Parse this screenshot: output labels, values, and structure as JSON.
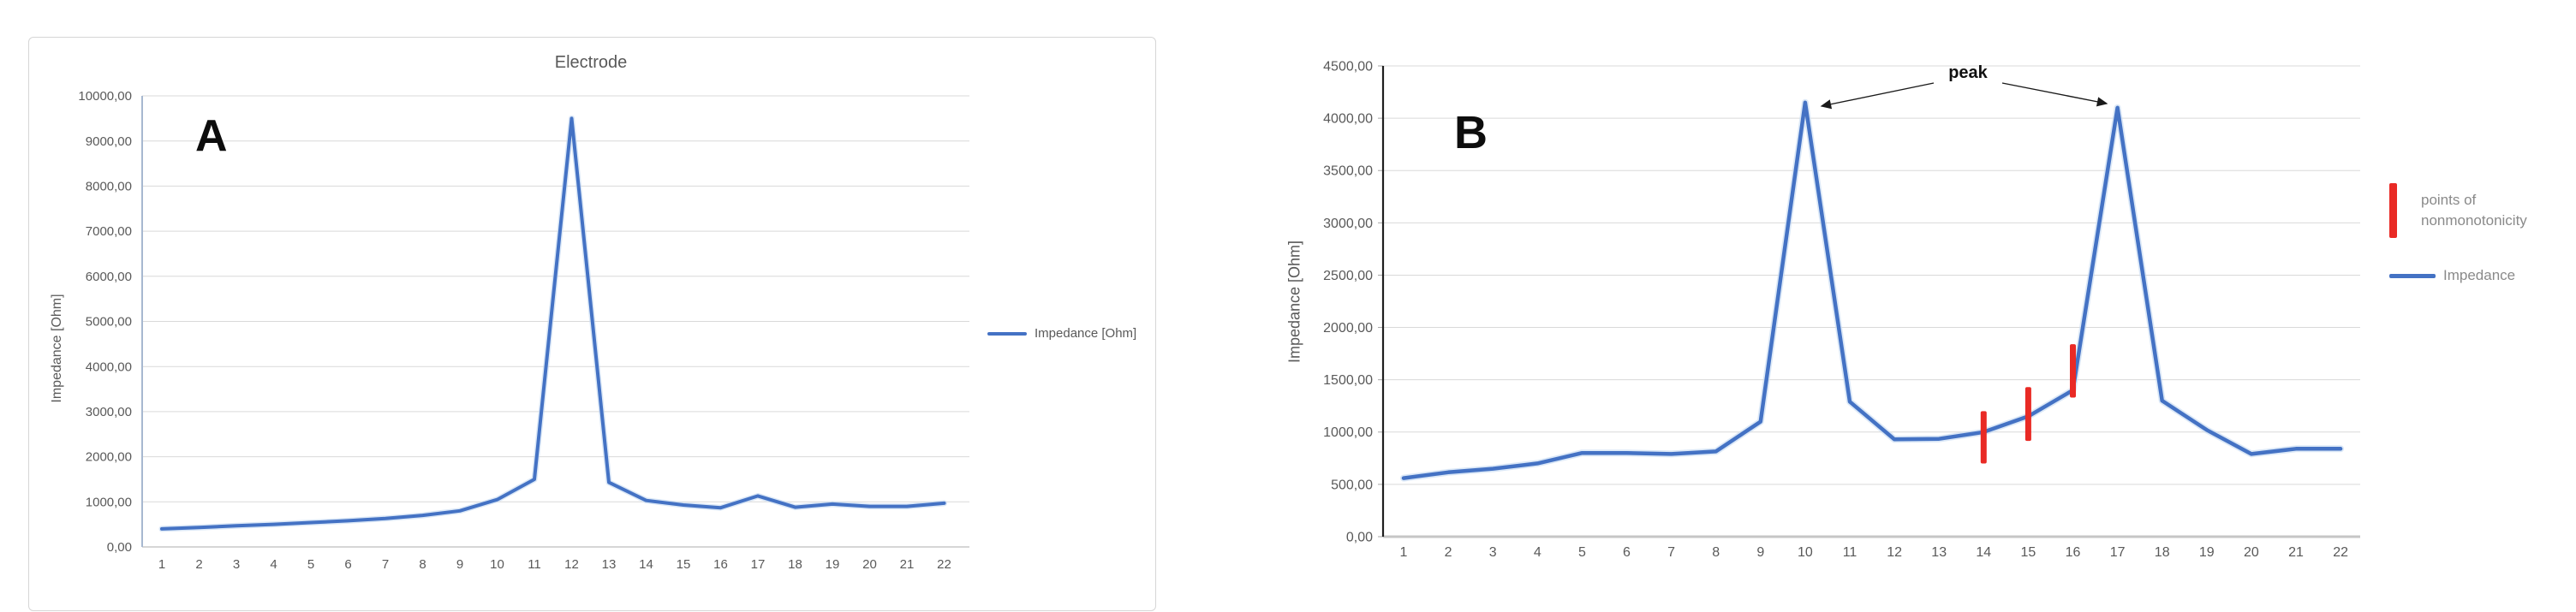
{
  "colors": {
    "line": "#4472C4",
    "line_halo": "#c7dbf2",
    "nonmonotonicity_red": "#E92A25",
    "grid": "#D9D9D9",
    "axis_text": "#595959",
    "legend_text_b": "#8a8a8a",
    "b_y_axis": "#1f1f1f",
    "annotation": "#1a1a1a"
  },
  "chart_data": [
    {
      "id": "A",
      "type": "line",
      "panel_label": "A",
      "title": "Electrode",
      "ylabel": "Impedance [Ohm]",
      "xlabel": "",
      "grid": true,
      "legend_position": "right",
      "categories": [
        1,
        2,
        3,
        4,
        5,
        6,
        7,
        8,
        9,
        10,
        11,
        12,
        13,
        14,
        15,
        16,
        17,
        18,
        19,
        20,
        21,
        22
      ],
      "series": [
        {
          "name": "Impedance [Ohm]",
          "color": "#4472C4",
          "values": [
            400,
            430,
            470,
            500,
            540,
            580,
            630,
            700,
            800,
            1050,
            1500,
            9500,
            1430,
            1030,
            930,
            870,
            1130,
            880,
            950,
            900,
            900,
            970
          ]
        }
      ],
      "ylim": [
        0,
        10000
      ],
      "ytick_step": 1000,
      "ytick_labels": [
        "0,00",
        "1000,00",
        "2000,00",
        "3000,00",
        "4000,00",
        "5000,00",
        "6000,00",
        "7000,00",
        "8000,00",
        "9000,00",
        "10000,00"
      ],
      "legend": [
        {
          "swatch": "line",
          "label": "Impedance [Ohm]"
        }
      ]
    },
    {
      "id": "B",
      "type": "line",
      "panel_label": "B",
      "title": "",
      "ylabel": "Impedance [Ohm]",
      "xlabel": "",
      "grid": true,
      "legend_position": "right",
      "categories": [
        1,
        2,
        3,
        4,
        5,
        6,
        7,
        8,
        9,
        10,
        11,
        12,
        13,
        14,
        15,
        16,
        17,
        18,
        19,
        20,
        21,
        22
      ],
      "series": [
        {
          "name": "Impedance",
          "color": "#4472C4",
          "values": [
            560,
            615,
            650,
            700,
            800,
            800,
            790,
            815,
            1100,
            4150,
            1290,
            930,
            935,
            1000,
            1150,
            1400,
            4100,
            1300,
            1020,
            790,
            840,
            840
          ]
        }
      ],
      "ylim": [
        0,
        4500
      ],
      "ytick_step": 500,
      "ytick_labels": [
        "0,00",
        "500,00",
        "1000,00",
        "1500,00",
        "2000,00",
        "2500,00",
        "3000,00",
        "3500,00",
        "4000,00",
        "4500,00"
      ],
      "annotations": {
        "peak": {
          "label": "peak",
          "targets": [
            10,
            17
          ]
        },
        "nonmonotonicity": {
          "label": "points of nonmonotonicity",
          "color": "#E92A25",
          "bars": [
            {
              "category": 14,
              "from": 700,
              "to": 1200
            },
            {
              "category": 15,
              "from": 915,
              "to": 1430
            },
            {
              "category": 16,
              "from": 1330,
              "to": 1840
            }
          ]
        }
      },
      "legend": [
        {
          "swatch": "bar",
          "label": "points of nonmonotonicity"
        },
        {
          "swatch": "line",
          "label": "Impedance"
        }
      ]
    }
  ]
}
